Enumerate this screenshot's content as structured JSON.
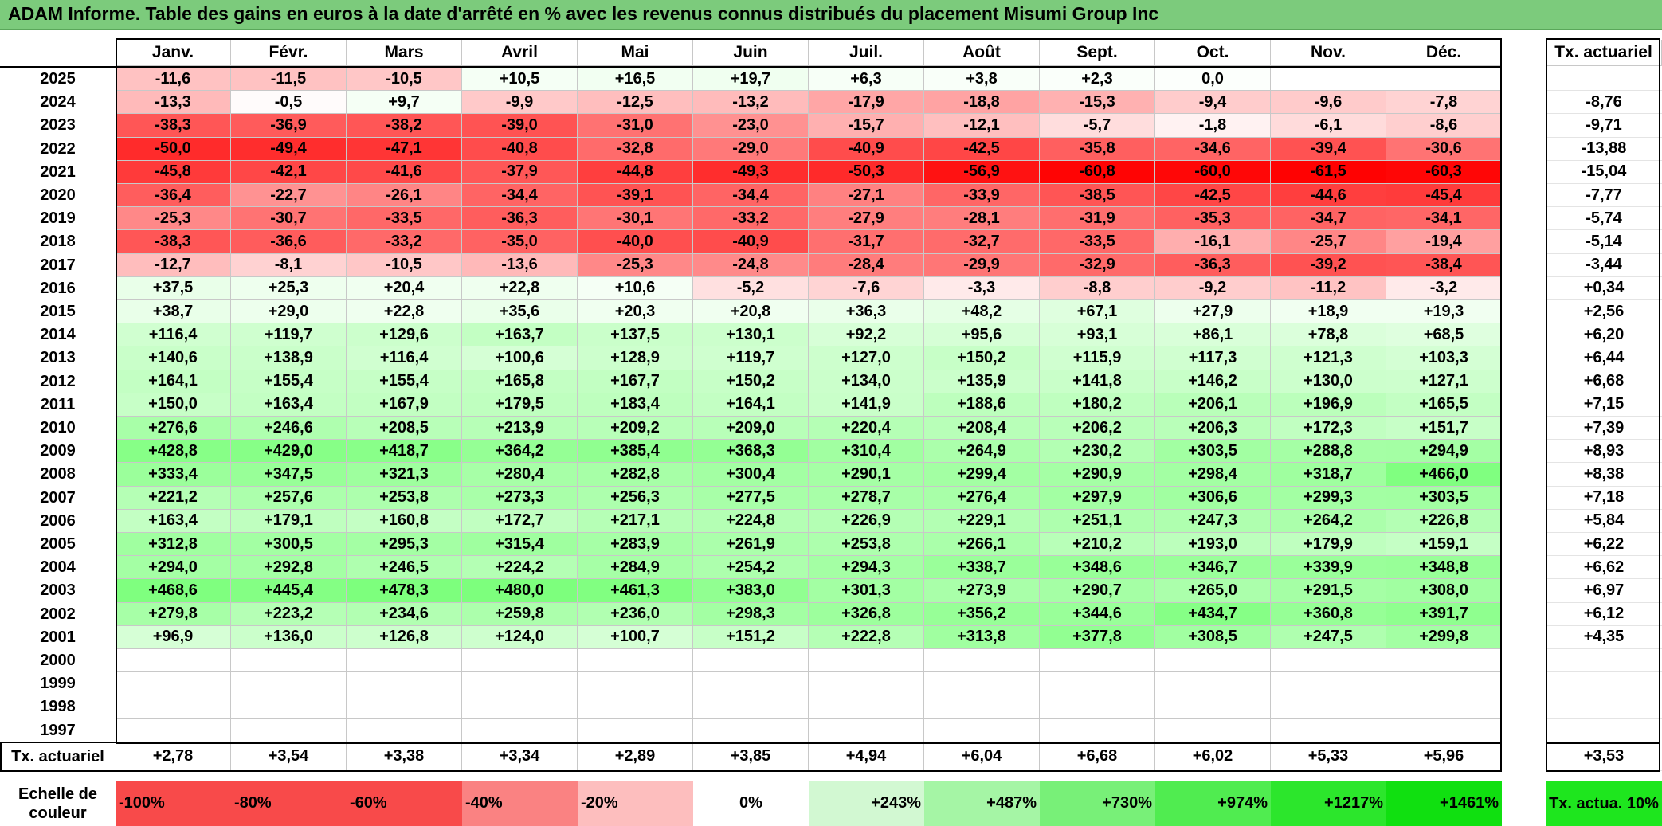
{
  "title": "ADAM Informe. Table des gains en euros à la date d'arrêté en % avec les revenus connus distribués du placement Misumi Group Inc",
  "months": [
    "Janv.",
    "Févr.",
    "Mars",
    "Avril",
    "Mai",
    "Juin",
    "Juil.",
    "Août",
    "Sept.",
    "Oct.",
    "Nov.",
    "Déc."
  ],
  "annual_header": "Tx. actuariel",
  "rows": [
    {
      "year": "2025",
      "values": [
        "-11,6",
        "-11,5",
        "-10,5",
        "+10,5",
        "+16,5",
        "+19,7",
        "+6,3",
        "+3,8",
        "+2,3",
        "0,0",
        "",
        ""
      ],
      "annual": ""
    },
    {
      "year": "2024",
      "values": [
        "-13,3",
        "-0,5",
        "+9,7",
        "-9,9",
        "-12,5",
        "-13,2",
        "-17,9",
        "-18,8",
        "-15,3",
        "-9,4",
        "-9,6",
        "-7,8"
      ],
      "annual": "-8,76"
    },
    {
      "year": "2023",
      "values": [
        "-38,3",
        "-36,9",
        "-38,2",
        "-39,0",
        "-31,0",
        "-23,0",
        "-15,7",
        "-12,1",
        "-5,7",
        "-1,8",
        "-6,1",
        "-8,6"
      ],
      "annual": "-9,71"
    },
    {
      "year": "2022",
      "values": [
        "-50,0",
        "-49,4",
        "-47,1",
        "-40,8",
        "-32,8",
        "-29,0",
        "-40,9",
        "-42,5",
        "-35,8",
        "-34,6",
        "-39,4",
        "-30,6"
      ],
      "annual": "-13,88"
    },
    {
      "year": "2021",
      "values": [
        "-45,8",
        "-42,1",
        "-41,6",
        "-37,9",
        "-44,8",
        "-49,3",
        "-50,3",
        "-56,9",
        "-60,8",
        "-60,0",
        "-61,5",
        "-60,3"
      ],
      "annual": "-15,04"
    },
    {
      "year": "2020",
      "values": [
        "-36,4",
        "-22,7",
        "-26,1",
        "-34,4",
        "-39,1",
        "-34,4",
        "-27,1",
        "-33,9",
        "-38,5",
        "-42,5",
        "-44,6",
        "-45,4"
      ],
      "annual": "-7,77"
    },
    {
      "year": "2019",
      "values": [
        "-25,3",
        "-30,7",
        "-33,5",
        "-36,3",
        "-30,1",
        "-33,2",
        "-27,9",
        "-28,1",
        "-31,9",
        "-35,3",
        "-34,7",
        "-34,1"
      ],
      "annual": "-5,74"
    },
    {
      "year": "2018",
      "values": [
        "-38,3",
        "-36,6",
        "-33,2",
        "-35,0",
        "-40,0",
        "-40,9",
        "-31,7",
        "-32,7",
        "-33,5",
        "-16,1",
        "-25,7",
        "-19,4"
      ],
      "annual": "-5,14"
    },
    {
      "year": "2017",
      "values": [
        "-12,7",
        "-8,1",
        "-10,5",
        "-13,6",
        "-25,3",
        "-24,8",
        "-28,4",
        "-29,9",
        "-32,9",
        "-36,3",
        "-39,2",
        "-38,4"
      ],
      "annual": "-3,44"
    },
    {
      "year": "2016",
      "values": [
        "+37,5",
        "+25,3",
        "+20,4",
        "+22,8",
        "+10,6",
        "-5,2",
        "-7,6",
        "-3,3",
        "-8,8",
        "-9,2",
        "-11,2",
        "-3,2"
      ],
      "annual": "+0,34"
    },
    {
      "year": "2015",
      "values": [
        "+38,7",
        "+29,0",
        "+22,8",
        "+35,6",
        "+20,3",
        "+20,8",
        "+36,3",
        "+48,2",
        "+67,1",
        "+27,9",
        "+18,9",
        "+19,3"
      ],
      "annual": "+2,56"
    },
    {
      "year": "2014",
      "values": [
        "+116,4",
        "+119,7",
        "+129,6",
        "+163,7",
        "+137,5",
        "+130,1",
        "+92,2",
        "+95,6",
        "+93,1",
        "+86,1",
        "+78,8",
        "+68,5"
      ],
      "annual": "+6,20"
    },
    {
      "year": "2013",
      "values": [
        "+140,6",
        "+138,9",
        "+116,4",
        "+100,6",
        "+128,9",
        "+119,7",
        "+127,0",
        "+150,2",
        "+115,9",
        "+117,3",
        "+121,3",
        "+103,3"
      ],
      "annual": "+6,44"
    },
    {
      "year": "2012",
      "values": [
        "+164,1",
        "+155,4",
        "+155,4",
        "+165,8",
        "+167,7",
        "+150,2",
        "+134,0",
        "+135,9",
        "+141,8",
        "+146,2",
        "+130,0",
        "+127,1"
      ],
      "annual": "+6,68"
    },
    {
      "year": "2011",
      "values": [
        "+150,0",
        "+163,4",
        "+167,9",
        "+179,5",
        "+183,4",
        "+164,1",
        "+141,9",
        "+188,6",
        "+180,2",
        "+206,1",
        "+196,9",
        "+165,5"
      ],
      "annual": "+7,15"
    },
    {
      "year": "2010",
      "values": [
        "+276,6",
        "+246,6",
        "+208,5",
        "+213,9",
        "+209,2",
        "+209,0",
        "+220,4",
        "+208,4",
        "+206,2",
        "+206,3",
        "+172,3",
        "+151,7"
      ],
      "annual": "+7,39"
    },
    {
      "year": "2009",
      "values": [
        "+428,8",
        "+429,0",
        "+418,7",
        "+364,2",
        "+385,4",
        "+368,3",
        "+310,4",
        "+264,9",
        "+230,2",
        "+303,5",
        "+288,8",
        "+294,9"
      ],
      "annual": "+8,93"
    },
    {
      "year": "2008",
      "values": [
        "+333,4",
        "+347,5",
        "+321,3",
        "+280,4",
        "+282,8",
        "+300,4",
        "+290,1",
        "+299,4",
        "+290,9",
        "+298,4",
        "+318,7",
        "+466,0"
      ],
      "annual": "+8,38"
    },
    {
      "year": "2007",
      "values": [
        "+221,2",
        "+257,6",
        "+253,8",
        "+273,3",
        "+256,3",
        "+277,5",
        "+278,7",
        "+276,4",
        "+297,9",
        "+306,6",
        "+299,3",
        "+303,5"
      ],
      "annual": "+7,18"
    },
    {
      "year": "2006",
      "values": [
        "+163,4",
        "+179,1",
        "+160,8",
        "+172,7",
        "+217,1",
        "+224,8",
        "+226,9",
        "+229,1",
        "+251,1",
        "+247,3",
        "+264,2",
        "+226,8"
      ],
      "annual": "+5,84"
    },
    {
      "year": "2005",
      "values": [
        "+312,8",
        "+300,5",
        "+295,3",
        "+315,4",
        "+283,9",
        "+261,9",
        "+253,8",
        "+266,1",
        "+210,2",
        "+193,0",
        "+179,9",
        "+159,1"
      ],
      "annual": "+6,22"
    },
    {
      "year": "2004",
      "values": [
        "+294,0",
        "+292,8",
        "+246,5",
        "+224,2",
        "+284,9",
        "+254,2",
        "+294,3",
        "+338,7",
        "+348,6",
        "+346,7",
        "+339,9",
        "+348,8"
      ],
      "annual": "+6,62"
    },
    {
      "year": "2003",
      "values": [
        "+468,6",
        "+445,4",
        "+478,3",
        "+480,0",
        "+461,3",
        "+383,0",
        "+301,3",
        "+273,9",
        "+290,7",
        "+265,0",
        "+291,5",
        "+308,0"
      ],
      "annual": "+6,97"
    },
    {
      "year": "2002",
      "values": [
        "+279,8",
        "+223,2",
        "+234,6",
        "+259,8",
        "+236,0",
        "+298,3",
        "+326,8",
        "+356,2",
        "+344,6",
        "+434,7",
        "+360,8",
        "+391,7"
      ],
      "annual": "+6,12"
    },
    {
      "year": "2001",
      "values": [
        "+96,9",
        "+136,0",
        "+126,8",
        "+124,0",
        "+100,7",
        "+151,2",
        "+222,8",
        "+313,8",
        "+377,8",
        "+308,5",
        "+247,5",
        "+299,8"
      ],
      "annual": "+4,35"
    },
    {
      "year": "2000",
      "values": [
        "",
        "",
        "",
        "",
        "",
        "",
        "",
        "",
        "",
        "",
        "",
        ""
      ],
      "annual": ""
    },
    {
      "year": "1999",
      "values": [
        "",
        "",
        "",
        "",
        "",
        "",
        "",
        "",
        "",
        "",
        "",
        ""
      ],
      "annual": ""
    },
    {
      "year": "1998",
      "values": [
        "",
        "",
        "",
        "",
        "",
        "",
        "",
        "",
        "",
        "",
        "",
        ""
      ],
      "annual": ""
    },
    {
      "year": "1997",
      "values": [
        "",
        "",
        "",
        "",
        "",
        "",
        "",
        "",
        "",
        "",
        "",
        ""
      ],
      "annual": ""
    }
  ],
  "footer": {
    "label": "Tx. actuariel",
    "values": [
      "+2,78",
      "+3,54",
      "+3,38",
      "+3,34",
      "+2,89",
      "+3,85",
      "+4,94",
      "+6,04",
      "+6,68",
      "+6,02",
      "+5,33",
      "+5,96"
    ],
    "total": "+3,53"
  },
  "scale": {
    "label": "Echelle de couleur",
    "items": [
      {
        "text": "-100%",
        "color": "#f84a4a"
      },
      {
        "text": "-80%",
        "color": "#f84a4a"
      },
      {
        "text": "-60%",
        "color": "#f84a4a"
      },
      {
        "text": "-40%",
        "color": "#fa8282"
      },
      {
        "text": "-20%",
        "color": "#fdbebe"
      },
      {
        "text": "0%",
        "color": "#ffffff"
      },
      {
        "text": "+243%",
        "color": "#d2f8d2"
      },
      {
        "text": "+487%",
        "color": "#a5f5a5"
      },
      {
        "text": "+730%",
        "color": "#78f078"
      },
      {
        "text": "+974%",
        "color": "#50ec50"
      },
      {
        "text": "+1217%",
        "color": "#2ce62c"
      },
      {
        "text": "+1461%",
        "color": "#10e010"
      }
    ],
    "actua_label": "Tx. actua. 10%",
    "actua_color": "#1ee61e"
  },
  "colors": {
    "title_bar": "#7ccb7c",
    "negative_max": "#ff0000",
    "positive_max": "#00ff00"
  }
}
